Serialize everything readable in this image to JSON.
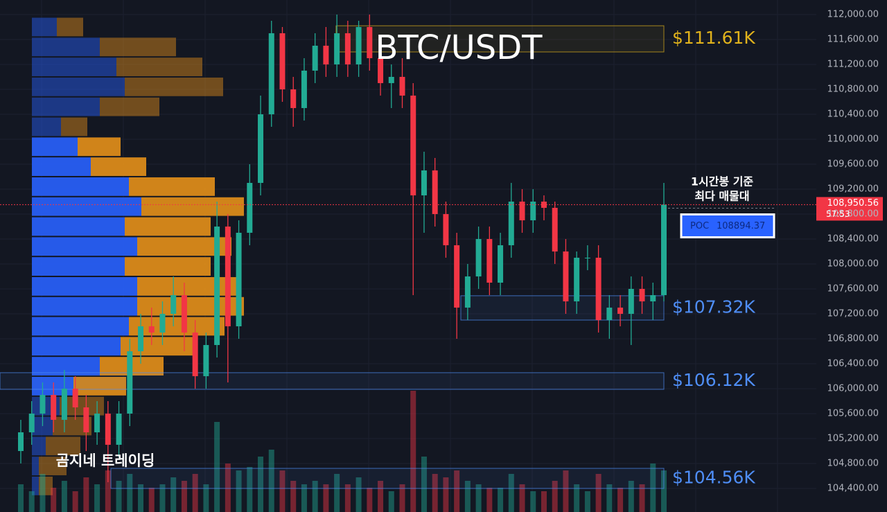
{
  "chart_data": {
    "type": "candlestick",
    "title": "BTC/USDT",
    "open": [
      105000,
      105300,
      105600,
      105900,
      105500,
      106000,
      105700,
      105300,
      105600,
      105100,
      105600,
      106600,
      107000,
      106900,
      107200,
      107500,
      106900,
      106200,
      106700,
      108600,
      107000,
      108500,
      109300,
      110400,
      111700,
      110800,
      110500,
      111100,
      111500,
      111200,
      111700,
      111200,
      111800,
      111300,
      110900,
      111000,
      110700,
      109100,
      109500,
      108800,
      108300,
      107300,
      107800,
      108400,
      107700,
      108300,
      109000,
      108700,
      109000,
      108900,
      108200,
      107400,
      108100,
      108100,
      107100,
      107300,
      107200,
      107600,
      107400,
      107500
    ],
    "high": [
      105500,
      105800,
      106100,
      106100,
      106300,
      106200,
      105900,
      105800,
      105800,
      105800,
      106800,
      107200,
      107300,
      107400,
      107800,
      107700,
      107100,
      106900,
      109000,
      108800,
      108700,
      109600,
      110700,
      111900,
      111800,
      111000,
      111300,
      111700,
      111800,
      112000,
      111900,
      111900,
      112000,
      111500,
      111200,
      111300,
      110900,
      109800,
      109700,
      109000,
      108500,
      108000,
      108600,
      108600,
      108500,
      109300,
      109200,
      109200,
      109100,
      109000,
      108400,
      108200,
      108300,
      108300,
      107500,
      107500,
      107800,
      107800,
      107700,
      109300
    ],
    "low": [
      104800,
      105100,
      105400,
      105300,
      105300,
      105500,
      105000,
      105100,
      104500,
      104900,
      105400,
      106400,
      106700,
      106700,
      107000,
      106600,
      106000,
      106000,
      106500,
      106100,
      106800,
      108300,
      109100,
      110200,
      110600,
      110200,
      110300,
      110900,
      111000,
      111000,
      111000,
      111000,
      111100,
      110700,
      110500,
      110500,
      107500,
      108500,
      108600,
      108100,
      106800,
      107100,
      107600,
      107500,
      107500,
      108100,
      108500,
      108500,
      108700,
      108000,
      107200,
      107200,
      107900,
      106900,
      106800,
      107000,
      106700,
      107200,
      107100,
      107400
    ],
    "close": [
      105300,
      105600,
      105900,
      105500,
      106000,
      105700,
      105300,
      105600,
      105100,
      105600,
      106600,
      107000,
      106900,
      107200,
      107500,
      106900,
      106200,
      106700,
      108600,
      107000,
      108500,
      109300,
      110400,
      111700,
      110800,
      110500,
      111100,
      111500,
      111200,
      111700,
      111200,
      111800,
      111300,
      110900,
      111000,
      110700,
      109100,
      109500,
      108800,
      108300,
      107300,
      107800,
      108400,
      107700,
      108300,
      109000,
      108700,
      109000,
      108900,
      108200,
      107400,
      108100,
      108100,
      107100,
      107300,
      107200,
      107600,
      107400,
      107500,
      108950
    ],
    "volume": [
      40,
      30,
      55,
      35,
      45,
      30,
      50,
      40,
      60,
      45,
      55,
      40,
      35,
      40,
      50,
      45,
      55,
      40,
      130,
      70,
      60,
      65,
      80,
      90,
      60,
      45,
      40,
      45,
      40,
      55,
      40,
      50,
      35,
      45,
      30,
      40,
      175,
      80,
      55,
      50,
      60,
      45,
      40,
      35,
      35,
      55,
      40,
      30,
      30,
      45,
      60,
      40,
      30,
      55,
      40,
      35,
      45,
      40,
      70,
      60
    ],
    "up_color": "#22ab94",
    "down_color": "#f23645",
    "ylim": [
      104022,
      112233
    ],
    "yticks": [
      {
        "value": 104400,
        "label": "104,400.00"
      },
      {
        "value": 104800,
        "label": "104,800.00"
      },
      {
        "value": 105200,
        "label": "105,200.00"
      },
      {
        "value": 105600,
        "label": "105,600.00"
      },
      {
        "value": 106000,
        "label": "106,000.00"
      },
      {
        "value": 106400,
        "label": "106,400.00"
      },
      {
        "value": 106800,
        "label": "106,800.00"
      },
      {
        "value": 107200,
        "label": "107,200.00"
      },
      {
        "value": 107600,
        "label": "107,600.00"
      },
      {
        "value": 108000,
        "label": "108,000.00"
      },
      {
        "value": 108400,
        "label": "108,400.00"
      },
      {
        "value": 108800,
        "label": "108,800.00"
      },
      {
        "value": 109200,
        "label": "109,200.00"
      },
      {
        "value": 109600,
        "label": "109,600.00"
      },
      {
        "value": 110000,
        "label": "110,000.00"
      },
      {
        "value": 110400,
        "label": "110,400.00"
      },
      {
        "value": 110800,
        "label": "110,800.00"
      },
      {
        "value": 111200,
        "label": "111,200.00"
      },
      {
        "value": 111600,
        "label": "111,600.00"
      },
      {
        "value": 112000,
        "label": "112,000.00"
      }
    ],
    "grid": true,
    "current_price": {
      "value": 108950.56,
      "label": "108,950.56"
    },
    "countdown": "57:53",
    "poc": {
      "label": "POC",
      "value": 108894.37
    },
    "poc_note": [
      "1시간봉 기준",
      "최다 매물대"
    ],
    "zones": [
      {
        "label": "$111.61K",
        "value": 111610,
        "top": 111820,
        "bottom": 111400,
        "color": "#e0b21c"
      },
      {
        "label": "$107.32K",
        "value": 107320,
        "top": 107490,
        "bottom": 107100,
        "color": "#4f8ef7"
      },
      {
        "label": "$106.12K",
        "value": 106120,
        "top": 106256,
        "bottom": 105989,
        "color": "#4f8ef7"
      },
      {
        "label": "$104.56K",
        "value": 104560,
        "top": 104722,
        "bottom": 104400,
        "color": "#4f8ef7"
      }
    ],
    "volume_profile": {
      "prices": [
        111800,
        111480,
        111160,
        110840,
        110520,
        110200,
        109880,
        109560,
        109240,
        108920,
        108600,
        108280,
        107960,
        107640,
        107320,
        107000,
        106680,
        106360,
        106040,
        105720,
        105400,
        105080,
        104760,
        104440
      ],
      "buy": [
        36,
        98,
        122,
        134,
        98,
        42,
        66,
        85,
        140,
        158,
        134,
        152,
        134,
        152,
        152,
        140,
        128,
        98,
        60,
        40,
        30,
        20,
        10,
        10
      ],
      "sell": [
        38,
        110,
        124,
        142,
        86,
        38,
        62,
        80,
        124,
        148,
        124,
        136,
        124,
        148,
        154,
        138,
        110,
        92,
        76,
        64,
        56,
        50,
        40,
        20
      ],
      "value_area": [
        106040,
        109880
      ],
      "buy_color": "#2962ff",
      "sell_color": "#e6901a"
    },
    "watermark": "곰지네 트레이딩"
  }
}
